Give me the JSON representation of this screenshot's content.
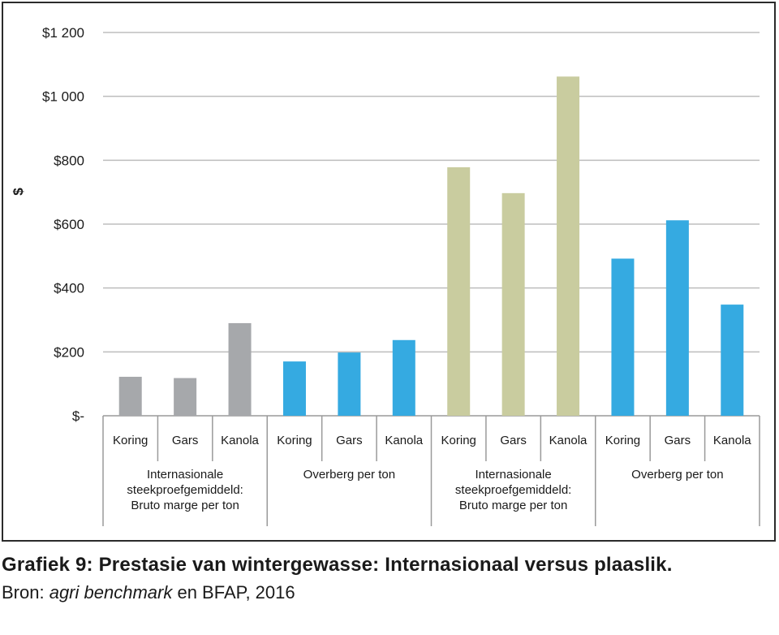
{
  "chart_data": {
    "type": "bar",
    "ylabel": "$",
    "ylim": [
      0,
      1200
    ],
    "yticks": [
      0,
      200,
      400,
      600,
      800,
      1000,
      1200
    ],
    "ytick_labels": [
      "$-",
      "$200",
      "$400",
      "$600",
      "$800",
      "$1 000",
      "$1 200"
    ],
    "grid": true,
    "categories": [
      "Koring",
      "Gars",
      "Kanola",
      "Koring",
      "Gars",
      "Kanola",
      "Koring",
      "Gars",
      "Kanola",
      "Koring",
      "Gars",
      "Kanola"
    ],
    "groups": [
      {
        "label": [
          "Internasionale",
          "steekproefgemiddeld:",
          "Bruto marge per ton"
        ],
        "color": "#a6a8ab",
        "values": [
          122,
          118,
          290
        ]
      },
      {
        "label": [
          "Overberg per ton"
        ],
        "color": "#35aae1",
        "values": [
          170,
          198,
          237
        ]
      },
      {
        "label": [
          "Internasionale",
          "steekproefgemiddeld:",
          "Bruto marge per ton"
        ],
        "color": "#c9cc9f",
        "values": [
          778,
          697,
          1062
        ]
      },
      {
        "label": [
          "Overberg per ton"
        ],
        "color": "#35aae1",
        "values": [
          492,
          612,
          348
        ]
      }
    ]
  },
  "caption": {
    "title": "Grafiek 9: Prestasie van wintergewasse: Internasionaal versus plaaslik.",
    "source_prefix": "Bron: ",
    "source_italic": "agri benchmark",
    "source_suffix": " en BFAP, 2016"
  }
}
